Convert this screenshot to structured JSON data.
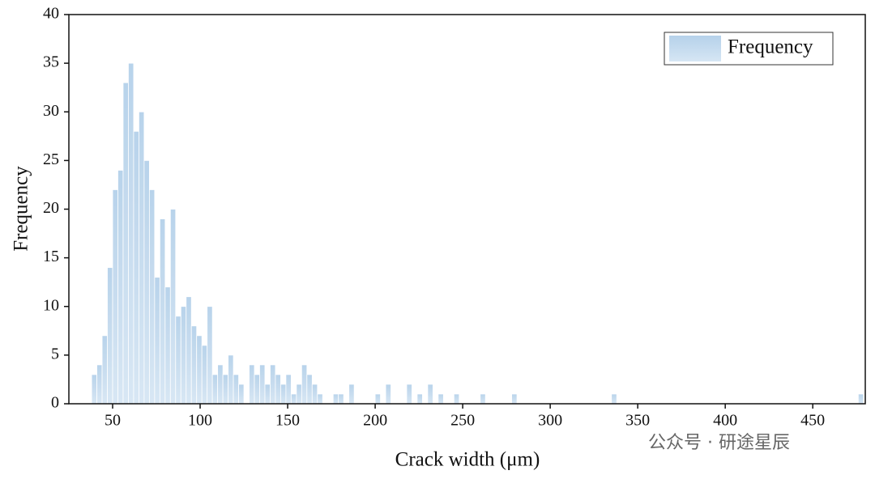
{
  "chart_data": {
    "type": "histogram",
    "xlabel": "Crack width (μm)",
    "ylabel": "Frequency",
    "watermark": "公众号 · 研途星辰",
    "bins": [
      38,
      41,
      44,
      47,
      50,
      53,
      56,
      59,
      62,
      65,
      68,
      71,
      74,
      77,
      80,
      83,
      86,
      89,
      92,
      95,
      98,
      101,
      104,
      107,
      110,
      113,
      116,
      119,
      122,
      125,
      128,
      131,
      134,
      137,
      140,
      143,
      146,
      149,
      152,
      155,
      158,
      161,
      164,
      167,
      170,
      173,
      176,
      179,
      182,
      185,
      188,
      191,
      194,
      197,
      200,
      203,
      206,
      209,
      212,
      215,
      218,
      221,
      224,
      227,
      230,
      233,
      236,
      239,
      242,
      245,
      248,
      251,
      254,
      257,
      260,
      263,
      266,
      269,
      272,
      275,
      278,
      281,
      284,
      287,
      290,
      293,
      296,
      299,
      302,
      305,
      308,
      311,
      314,
      317,
      320,
      323,
      326,
      329,
      332,
      335,
      338,
      341,
      344,
      347,
      350,
      353,
      356,
      359,
      362,
      365,
      368,
      371,
      374,
      377,
      380,
      383,
      386,
      389,
      392,
      395,
      398,
      401,
      404,
      407,
      410,
      413,
      416,
      419,
      422,
      425,
      428,
      431,
      434,
      437,
      440,
      443,
      446,
      449,
      452,
      455,
      458,
      461,
      464,
      467,
      470,
      473,
      476,
      479
    ],
    "series": [
      {
        "name": "Frequency",
        "color": "#bad4ea",
        "values": [
          3,
          4,
          7,
          14,
          22,
          24,
          33,
          35,
          28,
          30,
          25,
          22,
          13,
          19,
          12,
          20,
          9,
          10,
          11,
          8,
          7,
          6,
          10,
          3,
          4,
          3,
          5,
          3,
          2,
          0,
          4,
          3,
          4,
          2,
          4,
          3,
          2,
          3,
          1,
          2,
          4,
          3,
          2,
          1,
          0,
          0,
          1,
          1,
          0,
          2,
          0,
          0,
          0,
          0,
          1,
          0,
          2,
          0,
          0,
          0,
          2,
          0,
          1,
          0,
          2,
          0,
          1,
          0,
          0,
          1,
          0,
          0,
          0,
          0,
          1,
          0,
          0,
          0,
          0,
          0,
          1,
          0,
          0,
          0,
          0,
          0,
          0,
          0,
          0,
          0,
          0,
          0,
          0,
          0,
          0,
          0,
          0,
          0,
          0,
          1,
          0,
          0,
          0,
          0,
          0,
          0,
          0,
          0,
          0,
          0,
          0,
          0,
          0,
          0,
          0,
          0,
          0,
          0,
          0,
          0,
          0,
          0,
          0,
          0,
          0,
          0,
          0,
          0,
          0,
          0,
          0,
          0,
          0,
          0,
          0,
          0,
          0,
          0,
          0,
          0,
          0,
          0,
          0,
          0,
          0,
          0,
          1
        ]
      }
    ],
    "xlim": [
      25,
      480
    ],
    "ylim": [
      0,
      40
    ],
    "xticks": [
      50,
      100,
      150,
      200,
      250,
      300,
      350,
      400,
      450
    ],
    "yticks": [
      0,
      5,
      10,
      15,
      20,
      25,
      30,
      35,
      40
    ],
    "legend": "upper right"
  }
}
